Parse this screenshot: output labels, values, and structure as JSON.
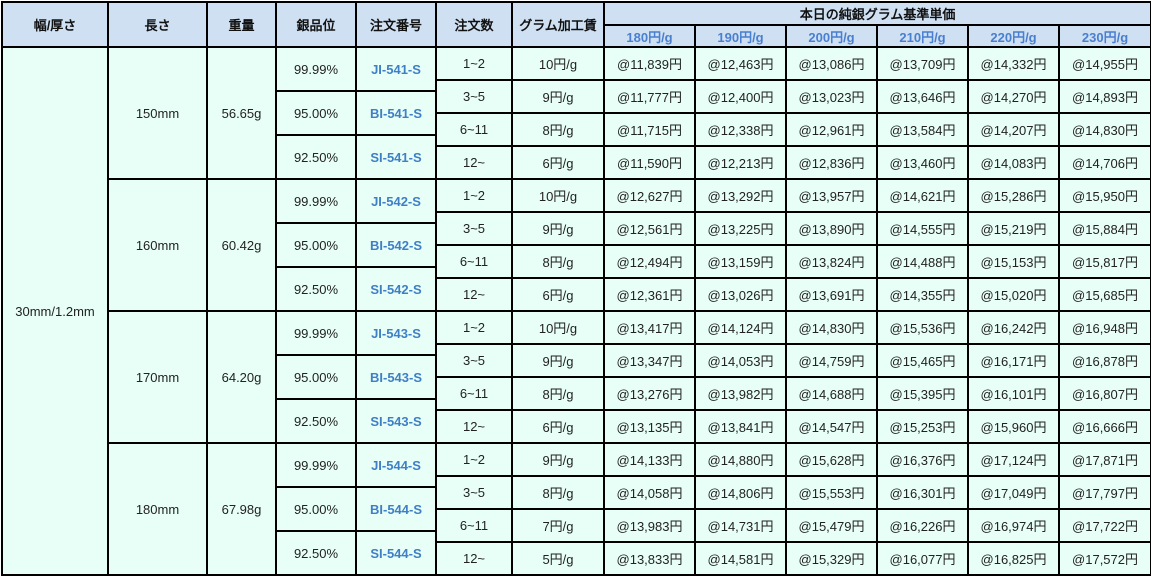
{
  "header": {
    "width_thickness": "幅/厚さ",
    "length": "長さ",
    "weight": "重量",
    "purity": "銀品位",
    "order_no": "注文番号",
    "qty": "注文数",
    "fee": "グラム加工賃",
    "base_price_title": "本日の純銀グラム基準単価",
    "base_prices": [
      "180円/g",
      "190円/g",
      "200円/g",
      "210円/g",
      "220円/g",
      "230円/g"
    ]
  },
  "width_thickness_value": "30mm/1.2mm",
  "colors": {
    "header_bg": "#cfe0f3",
    "body_bg": "#e8fff8",
    "accent": "#4a7fd0",
    "border": "#000000"
  },
  "groups": [
    {
      "length": "150mm",
      "weight": "56.65g",
      "items": [
        {
          "purity": "99.99%",
          "order_no": "JI-541-S"
        },
        {
          "purity": "95.00%",
          "order_no": "BI-541-S"
        },
        {
          "purity": "92.50%",
          "order_no": "SI-541-S"
        }
      ],
      "tiers": [
        {
          "qty": "1~2",
          "fee": "10円/g",
          "prices": [
            "@11,839円",
            "@12,463円",
            "@13,086円",
            "@13,709円",
            "@14,332円",
            "@14,955円"
          ]
        },
        {
          "qty": "3~5",
          "fee": "9円/g",
          "prices": [
            "@11,777円",
            "@12,400円",
            "@13,023円",
            "@13,646円",
            "@14,270円",
            "@14,893円"
          ]
        },
        {
          "qty": "6~11",
          "fee": "8円/g",
          "prices": [
            "@11,715円",
            "@12,338円",
            "@12,961円",
            "@13,584円",
            "@14,207円",
            "@14,830円"
          ]
        },
        {
          "qty": "12~",
          "fee": "6円/g",
          "prices": [
            "@11,590円",
            "@12,213円",
            "@12,836円",
            "@13,460円",
            "@14,083円",
            "@14,706円"
          ]
        }
      ]
    },
    {
      "length": "160mm",
      "weight": "60.42g",
      "items": [
        {
          "purity": "99.99%",
          "order_no": "JI-542-S"
        },
        {
          "purity": "95.00%",
          "order_no": "BI-542-S"
        },
        {
          "purity": "92.50%",
          "order_no": "SI-542-S"
        }
      ],
      "tiers": [
        {
          "qty": "1~2",
          "fee": "10円/g",
          "prices": [
            "@12,627円",
            "@13,292円",
            "@13,957円",
            "@14,621円",
            "@15,286円",
            "@15,950円"
          ]
        },
        {
          "qty": "3~5",
          "fee": "9円/g",
          "prices": [
            "@12,561円",
            "@13,225円",
            "@13,890円",
            "@14,555円",
            "@15,219円",
            "@15,884円"
          ]
        },
        {
          "qty": "6~11",
          "fee": "8円/g",
          "prices": [
            "@12,494円",
            "@13,159円",
            "@13,824円",
            "@14,488円",
            "@15,153円",
            "@15,817円"
          ]
        },
        {
          "qty": "12~",
          "fee": "6円/g",
          "prices": [
            "@12,361円",
            "@13,026円",
            "@13,691円",
            "@14,355円",
            "@15,020円",
            "@15,685円"
          ]
        }
      ]
    },
    {
      "length": "170mm",
      "weight": "64.20g",
      "items": [
        {
          "purity": "99.99%",
          "order_no": "JI-543-S"
        },
        {
          "purity": "95.00%",
          "order_no": "BI-543-S"
        },
        {
          "purity": "92.50%",
          "order_no": "SI-543-S"
        }
      ],
      "tiers": [
        {
          "qty": "1~2",
          "fee": "10円/g",
          "prices": [
            "@13,417円",
            "@14,124円",
            "@14,830円",
            "@15,536円",
            "@16,242円",
            "@16,948円"
          ]
        },
        {
          "qty": "3~5",
          "fee": "9円/g",
          "prices": [
            "@13,347円",
            "@14,053円",
            "@14,759円",
            "@15,465円",
            "@16,171円",
            "@16,878円"
          ]
        },
        {
          "qty": "6~11",
          "fee": "8円/g",
          "prices": [
            "@13,276円",
            "@13,982円",
            "@14,688円",
            "@15,395円",
            "@16,101円",
            "@16,807円"
          ]
        },
        {
          "qty": "12~",
          "fee": "6円/g",
          "prices": [
            "@13,135円",
            "@13,841円",
            "@14,547円",
            "@15,253円",
            "@15,960円",
            "@16,666円"
          ]
        }
      ]
    },
    {
      "length": "180mm",
      "weight": "67.98g",
      "items": [
        {
          "purity": "99.99%",
          "order_no": "JI-544-S"
        },
        {
          "purity": "95.00%",
          "order_no": "BI-544-S"
        },
        {
          "purity": "92.50%",
          "order_no": "SI-544-S"
        }
      ],
      "tiers": [
        {
          "qty": "1~2",
          "fee": "9円/g",
          "prices": [
            "@14,133円",
            "@14,880円",
            "@15,628円",
            "@16,376円",
            "@17,124円",
            "@17,871円"
          ]
        },
        {
          "qty": "3~5",
          "fee": "8円/g",
          "prices": [
            "@14,058円",
            "@14,806円",
            "@15,553円",
            "@16,301円",
            "@17,049円",
            "@17,797円"
          ]
        },
        {
          "qty": "6~11",
          "fee": "7円/g",
          "prices": [
            "@13,983円",
            "@14,731円",
            "@15,479円",
            "@16,226円",
            "@16,974円",
            "@17,722円"
          ]
        },
        {
          "qty": "12~",
          "fee": "5円/g",
          "prices": [
            "@13,833円",
            "@14,581円",
            "@15,329円",
            "@16,077円",
            "@16,825円",
            "@17,572円"
          ]
        }
      ]
    }
  ]
}
